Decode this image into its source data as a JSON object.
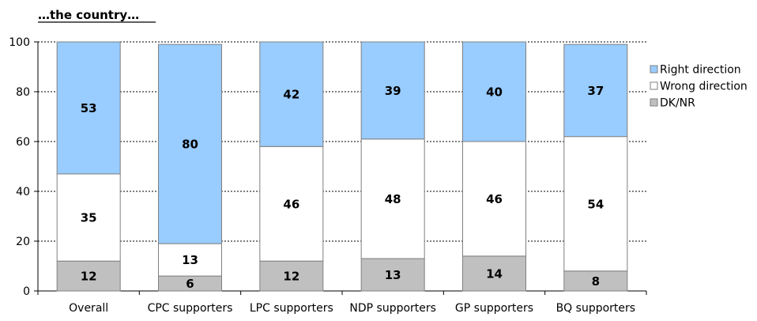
{
  "chart_data": {
    "type": "bar",
    "stacked": true,
    "title": "…the country…",
    "categories": [
      "Overall",
      "CPC supporters",
      "LPC supporters",
      "NDP supporters",
      "GP supporters",
      "BQ supporters"
    ],
    "series": [
      {
        "name": "DK/NR",
        "color": "#c0c0c0",
        "values": [
          12,
          6,
          12,
          13,
          14,
          8
        ]
      },
      {
        "name": "Wrong direction",
        "color": "#ffffff",
        "values": [
          35,
          13,
          46,
          48,
          46,
          54
        ]
      },
      {
        "name": "Right direction",
        "color": "#99ccff",
        "values": [
          53,
          80,
          42,
          39,
          40,
          37
        ]
      }
    ],
    "legend": [
      "Right direction",
      "Wrong direction",
      "DK/NR"
    ],
    "legend_position": "right",
    "ylim": [
      0,
      100
    ],
    "yticks": [
      "0",
      "20",
      "40",
      "60",
      "80",
      "100"
    ],
    "xlabel": "",
    "ylabel": "",
    "grid": "dotted-horizontal"
  }
}
